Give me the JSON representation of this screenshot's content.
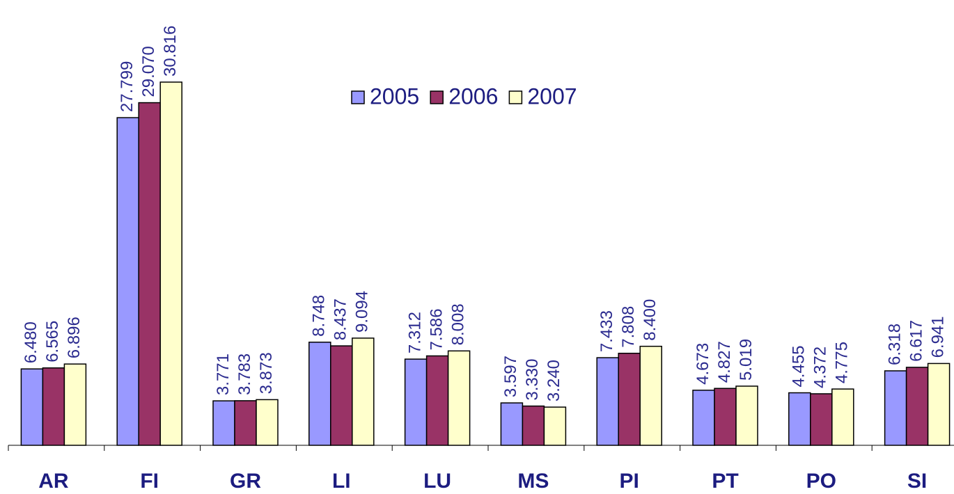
{
  "chart_data": {
    "type": "bar",
    "categories": [
      "AR",
      "FI",
      "GR",
      "LI",
      "LU",
      "MS",
      "PI",
      "PT",
      "PO",
      "SI"
    ],
    "series": [
      {
        "name": "2005",
        "color": "#9999ff",
        "values": [
          6480,
          27799,
          3771,
          8748,
          7312,
          3597,
          7433,
          4673,
          4455,
          6318
        ],
        "value_labels": [
          "6.480",
          "27.799",
          "3.771",
          "8.748",
          "7.312",
          "3.597",
          "7.433",
          "4.673",
          "4.455",
          "6.318"
        ]
      },
      {
        "name": "2006",
        "color": "#993366",
        "values": [
          6565,
          29070,
          3783,
          8437,
          7586,
          3330,
          7808,
          4827,
          4372,
          6617
        ],
        "value_labels": [
          "6.565",
          "29.070",
          "3.783",
          "8.437",
          "7.586",
          "3.330",
          "7.808",
          "4.827",
          "4.372",
          "6.617"
        ]
      },
      {
        "name": "2007",
        "color": "#ffffcc",
        "values": [
          6896,
          30816,
          3873,
          9094,
          8008,
          3240,
          8400,
          5019,
          4775,
          6941
        ],
        "value_labels": [
          "6.896",
          "30.816",
          "3.873",
          "9.094",
          "8.008",
          "3.240",
          "8.400",
          "5.019",
          "4.775",
          "6.941"
        ]
      }
    ],
    "legend": "top"
  }
}
